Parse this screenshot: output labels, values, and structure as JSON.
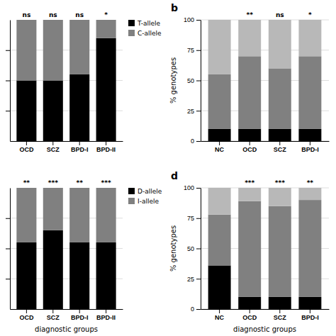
{
  "chart_data": [
    {
      "type": "bar",
      "stacked": true,
      "categories": [
        "OCD",
        "SCZ",
        "BPD-I",
        "BPD-II"
      ],
      "series": [
        {
          "name": "T-allele",
          "color": "#000000",
          "values": [
            50,
            50,
            55,
            85
          ]
        },
        {
          "name": "C-allele",
          "color": "#808080",
          "values": [
            50,
            50,
            45,
            15
          ]
        }
      ],
      "ylim": [
        0,
        100
      ],
      "yticks": [
        25,
        50,
        75
      ],
      "grid": true,
      "legend": "upper right",
      "tick_labels": "x",
      "annotations": [
        {
          "category": "OCD",
          "text": "ns"
        },
        {
          "category": "SCZ",
          "text": "ns"
        },
        {
          "category": "BPD-I",
          "text": "ns"
        },
        {
          "category": "BPD-II",
          "text": "*"
        }
      ]
    },
    {
      "type": "bar",
      "stacked": true,
      "title": "b",
      "categories": [
        "NC",
        "OCD",
        "SCZ",
        "BPD-I"
      ],
      "series": [
        {
          "color": "#000000",
          "values": [
            10,
            10,
            10,
            10
          ]
        },
        {
          "color": "#808080",
          "values": [
            45,
            60,
            50,
            60
          ]
        },
        {
          "color": "#b8b8b8",
          "values": [
            45,
            30,
            40,
            30
          ]
        }
      ],
      "ylabel": "% genotypes",
      "ylim": [
        0,
        100
      ],
      "yticks": [
        0,
        25,
        50,
        75,
        100
      ],
      "grid": true,
      "annotations": [
        {
          "category": "OCD",
          "text": "**"
        },
        {
          "category": "SCZ",
          "text": "ns"
        },
        {
          "category": "BPD-I",
          "text": "*"
        }
      ]
    },
    {
      "type": "bar",
      "stacked": true,
      "categories": [
        "OCD",
        "SCZ",
        "BPD-I",
        "BPD-II"
      ],
      "series": [
        {
          "name": "D-allele",
          "color": "#000000",
          "values": [
            55,
            65,
            55,
            55
          ]
        },
        {
          "name": "I-allele",
          "color": "#808080",
          "values": [
            45,
            35,
            45,
            45
          ]
        }
      ],
      "xlabel": "diagnostic groups",
      "ylim": [
        0,
        100
      ],
      "yticks": [
        25,
        50,
        75
      ],
      "grid": true,
      "legend": "upper right",
      "tick_labels": "x",
      "annotations": [
        {
          "category": "OCD",
          "text": "**"
        },
        {
          "category": "SCZ",
          "text": "***"
        },
        {
          "category": "BPD-I",
          "text": "**"
        },
        {
          "category": "BPD-II",
          "text": "***"
        }
      ]
    },
    {
      "type": "bar",
      "stacked": true,
      "title": "d",
      "categories": [
        "NC",
        "OCD",
        "SCZ",
        "BPD-I"
      ],
      "series": [
        {
          "color": "#000000",
          "values": [
            36,
            10,
            10,
            10
          ]
        },
        {
          "color": "#808080",
          "values": [
            42,
            79,
            75,
            80
          ]
        },
        {
          "color": "#b8b8b8",
          "values": [
            22,
            11,
            15,
            10
          ]
        }
      ],
      "ylabel": "% genotypes",
      "xlabel": "diagnostic groups",
      "ylim": [
        0,
        100
      ],
      "yticks": [
        0,
        25,
        50,
        75,
        100
      ],
      "grid": true,
      "annotations": [
        {
          "category": "OCD",
          "text": "***"
        },
        {
          "category": "SCZ",
          "text": "***"
        },
        {
          "category": "BPD-I",
          "text": "**"
        }
      ]
    }
  ]
}
